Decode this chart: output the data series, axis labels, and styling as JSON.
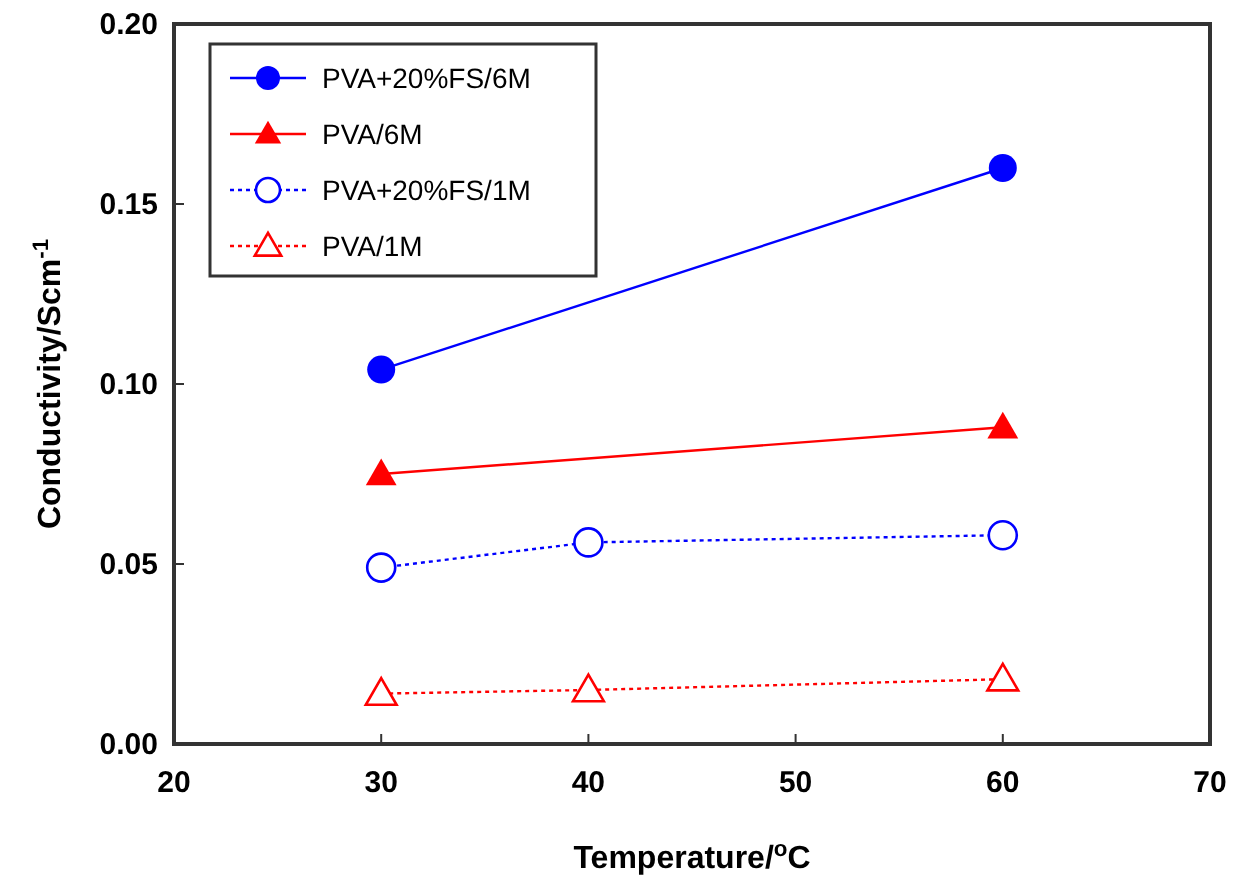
{
  "chart_data": {
    "type": "line",
    "xlabel": "Temperature/$^{o}$C",
    "ylabel": "Conductivity/Scm$^{-1}$",
    "xlim": [
      20,
      70
    ],
    "xticks": [
      20,
      30,
      40,
      50,
      60,
      70
    ],
    "ylim": [
      0,
      0.2
    ],
    "yticks": [
      {
        "value": 0,
        "label": "0.00"
      },
      {
        "value": 0.05,
        "label": "0.05"
      },
      {
        "value": 0.1,
        "label": "0.10"
      },
      {
        "value": 0.15,
        "label": "0.15"
      },
      {
        "value": 0.2,
        "label": "0.20"
      }
    ],
    "grid": false,
    "legend": "top left",
    "series": [
      {
        "name": "PVA+20%FS/6M",
        "color": "#0000ff",
        "x": [
          30,
          60
        ],
        "values": [
          0.104,
          0.16
        ],
        "marker": "circle",
        "line_style": "solid"
      },
      {
        "name": "PVA/6M",
        "color": "#ff0000",
        "x": [
          30,
          60
        ],
        "values": [
          0.075,
          0.088
        ],
        "marker": "triangle",
        "line_style": "solid"
      },
      {
        "name": "PVA+20%FS/1M",
        "color": "#0000ff",
        "x": [
          30,
          40,
          60
        ],
        "values": [
          0.049,
          0.056,
          0.058
        ],
        "marker": "circle",
        "line_style": "dotted"
      },
      {
        "name": "PVA/1M",
        "color": "#ff0000",
        "x": [
          30,
          40,
          60
        ],
        "values": [
          0.014,
          0.015,
          0.018
        ],
        "marker": "triangle",
        "line_style": "dotted"
      }
    ]
  }
}
